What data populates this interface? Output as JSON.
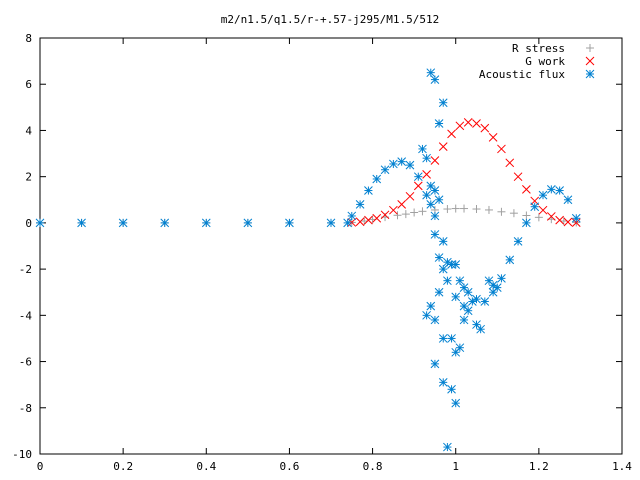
{
  "chart_data": {
    "type": "scatter",
    "title": "m2/n1.5/q1.5/r-+.57-j295/M1.5/512",
    "xlabel": "",
    "ylabel": "",
    "xlim": [
      0,
      1.4
    ],
    "ylim": [
      -10,
      8
    ],
    "x_ticks": [
      "0",
      "0.2",
      "0.4",
      "0.6",
      "0.8",
      "1",
      "1.2",
      "1.4"
    ],
    "y_ticks": [
      "-10",
      "-8",
      "-6",
      "-4",
      "-2",
      "0",
      "2",
      "4",
      "6",
      "8"
    ],
    "grid": false,
    "legend_position": "top-right",
    "series": [
      {
        "name": "R stress",
        "marker": "plus",
        "color": "#a0a0a0",
        "points": [
          [
            0.0,
            0.0
          ],
          [
            0.1,
            0.0
          ],
          [
            0.2,
            0.0
          ],
          [
            0.3,
            0.0
          ],
          [
            0.4,
            0.0
          ],
          [
            0.5,
            0.0
          ],
          [
            0.6,
            0.0
          ],
          [
            0.7,
            0.0
          ],
          [
            0.75,
            0.02
          ],
          [
            0.78,
            0.08
          ],
          [
            0.8,
            0.15
          ],
          [
            0.83,
            0.25
          ],
          [
            0.86,
            0.33
          ],
          [
            0.88,
            0.38
          ],
          [
            0.9,
            0.45
          ],
          [
            0.92,
            0.5
          ],
          [
            0.95,
            0.56
          ],
          [
            0.98,
            0.6
          ],
          [
            1.0,
            0.62
          ],
          [
            1.02,
            0.62
          ],
          [
            1.05,
            0.6
          ],
          [
            1.08,
            0.56
          ],
          [
            1.11,
            0.48
          ],
          [
            1.14,
            0.42
          ],
          [
            1.17,
            0.32
          ],
          [
            1.2,
            0.24
          ],
          [
            1.23,
            0.16
          ],
          [
            1.26,
            0.08
          ],
          [
            1.29,
            0.02
          ]
        ]
      },
      {
        "name": "G work",
        "marker": "cross",
        "color": "#ff0000",
        "points": [
          [
            0.75,
            0.02
          ],
          [
            0.77,
            0.05
          ],
          [
            0.79,
            0.12
          ],
          [
            0.81,
            0.2
          ],
          [
            0.83,
            0.35
          ],
          [
            0.85,
            0.55
          ],
          [
            0.87,
            0.8
          ],
          [
            0.89,
            1.15
          ],
          [
            0.91,
            1.6
          ],
          [
            0.93,
            2.1
          ],
          [
            0.95,
            2.7
          ],
          [
            0.97,
            3.3
          ],
          [
            0.99,
            3.85
          ],
          [
            1.01,
            4.2
          ],
          [
            1.03,
            4.35
          ],
          [
            1.05,
            4.3
          ],
          [
            1.07,
            4.1
          ],
          [
            1.09,
            3.7
          ],
          [
            1.11,
            3.2
          ],
          [
            1.13,
            2.6
          ],
          [
            1.15,
            2.0
          ],
          [
            1.17,
            1.45
          ],
          [
            1.19,
            0.95
          ],
          [
            1.21,
            0.55
          ],
          [
            1.23,
            0.28
          ],
          [
            1.25,
            0.12
          ],
          [
            1.27,
            0.04
          ],
          [
            1.29,
            0.01
          ]
        ]
      },
      {
        "name": "Acoustic flux",
        "marker": "star",
        "color": "#0080d0",
        "points": [
          [
            0.0,
            0.0
          ],
          [
            0.1,
            0.0
          ],
          [
            0.2,
            0.0
          ],
          [
            0.3,
            0.0
          ],
          [
            0.4,
            0.0
          ],
          [
            0.5,
            0.0
          ],
          [
            0.6,
            0.0
          ],
          [
            0.7,
            0.0
          ],
          [
            0.74,
            0.0
          ],
          [
            0.75,
            0.3
          ],
          [
            0.77,
            0.8
          ],
          [
            0.79,
            1.4
          ],
          [
            0.81,
            1.9
          ],
          [
            0.83,
            2.3
          ],
          [
            0.85,
            2.55
          ],
          [
            0.87,
            2.65
          ],
          [
            0.89,
            2.5
          ],
          [
            0.91,
            2.0
          ],
          [
            0.93,
            1.2
          ],
          [
            0.95,
            0.3
          ],
          [
            0.97,
            -0.8
          ],
          [
            0.99,
            -1.8
          ],
          [
            1.01,
            -2.5
          ],
          [
            1.03,
            -3.0
          ],
          [
            1.05,
            -3.3
          ],
          [
            1.07,
            -3.4
          ],
          [
            1.09,
            -3.0
          ],
          [
            1.11,
            -2.4
          ],
          [
            1.13,
            -1.6
          ],
          [
            1.15,
            -0.8
          ],
          [
            1.17,
            0.0
          ],
          [
            1.19,
            0.7
          ],
          [
            1.21,
            1.2
          ],
          [
            1.23,
            1.45
          ],
          [
            1.25,
            1.4
          ],
          [
            1.27,
            1.0
          ],
          [
            1.29,
            0.2
          ],
          [
            0.94,
            6.5
          ],
          [
            0.95,
            6.2
          ],
          [
            0.97,
            5.2
          ],
          [
            0.96,
            4.3
          ],
          [
            0.92,
            3.2
          ],
          [
            0.93,
            2.8
          ],
          [
            0.94,
            1.6
          ],
          [
            0.95,
            1.4
          ],
          [
            0.96,
            1.0
          ],
          [
            0.94,
            0.8
          ],
          [
            0.95,
            -0.5
          ],
          [
            0.96,
            -1.5
          ],
          [
            0.98,
            -1.7
          ],
          [
            0.97,
            -2.0
          ],
          [
            1.0,
            -1.8
          ],
          [
            0.98,
            -2.5
          ],
          [
            0.96,
            -3.0
          ],
          [
            1.02,
            -2.8
          ],
          [
            1.0,
            -3.2
          ],
          [
            0.93,
            -4.0
          ],
          [
            0.94,
            -3.6
          ],
          [
            0.95,
            -4.2
          ],
          [
            1.02,
            -3.6
          ],
          [
            1.03,
            -3.8
          ],
          [
            1.04,
            -3.4
          ],
          [
            1.05,
            -4.4
          ],
          [
            1.06,
            -4.6
          ],
          [
            1.02,
            -4.2
          ],
          [
            0.97,
            -5.0
          ],
          [
            0.99,
            -5.0
          ],
          [
            1.01,
            -5.4
          ],
          [
            1.0,
            -5.6
          ],
          [
            0.95,
            -6.1
          ],
          [
            0.97,
            -6.9
          ],
          [
            0.99,
            -7.2
          ],
          [
            1.0,
            -7.8
          ],
          [
            0.98,
            -9.7
          ],
          [
            1.08,
            -2.5
          ],
          [
            1.09,
            -2.7
          ],
          [
            1.1,
            -2.8
          ]
        ]
      }
    ]
  }
}
